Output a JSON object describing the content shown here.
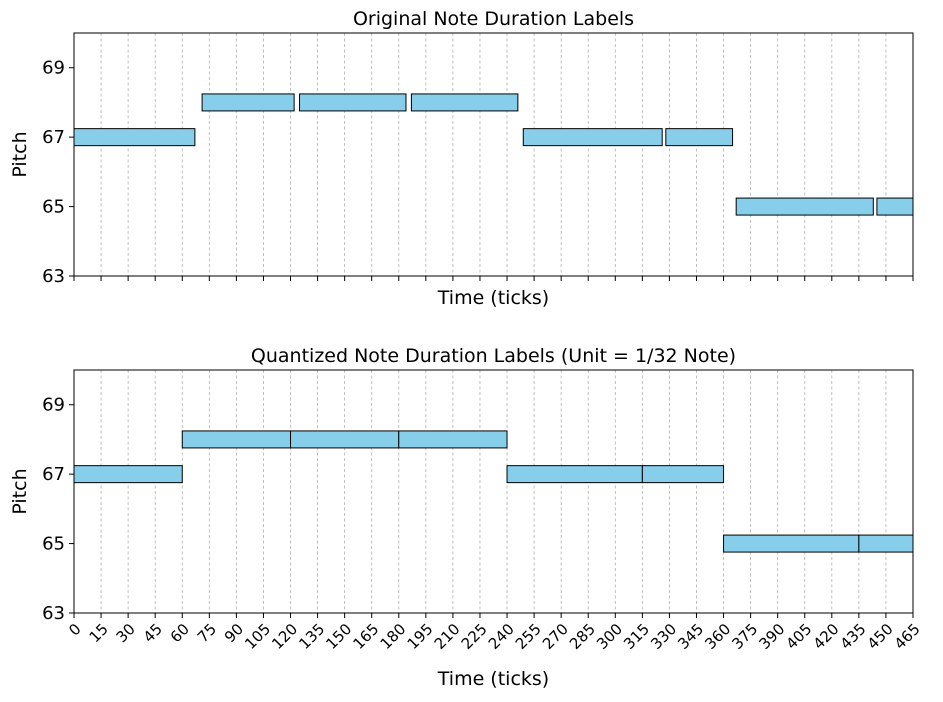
{
  "chart_data": [
    {
      "type": "bar",
      "subtype": "piano-roll",
      "title": "Original Note Duration Labels",
      "xlabel": "Time (ticks)",
      "ylabel": "Pitch",
      "xlim": [
        0,
        465
      ],
      "ylim": [
        63,
        70
      ],
      "yticks": [
        "63",
        "65",
        "67",
        "69"
      ],
      "xtick_labels_visible": false,
      "grid": "vertical dashed",
      "bar_color": "#87CEEB",
      "notes": [
        {
          "start": 0,
          "end": 67,
          "pitch": 67
        },
        {
          "start": 71,
          "end": 122,
          "pitch": 68
        },
        {
          "start": 125,
          "end": 184,
          "pitch": 68
        },
        {
          "start": 187,
          "end": 246,
          "pitch": 68
        },
        {
          "start": 249,
          "end": 326,
          "pitch": 67
        },
        {
          "start": 328,
          "end": 365,
          "pitch": 67
        },
        {
          "start": 367,
          "end": 443,
          "pitch": 65
        },
        {
          "start": 445,
          "end": 465,
          "pitch": 65
        }
      ]
    },
    {
      "type": "bar",
      "subtype": "piano-roll",
      "title": "Quantized Note Duration Labels (Unit = 1/32 Note)",
      "xlabel": "Time (ticks)",
      "ylabel": "Pitch",
      "xlim": [
        0,
        465
      ],
      "ylim": [
        63,
        70
      ],
      "yticks": [
        "63",
        "65",
        "67",
        "69"
      ],
      "xticks": [
        "0",
        "15",
        "30",
        "45",
        "60",
        "75",
        "90",
        "105",
        "120",
        "135",
        "150",
        "165",
        "180",
        "195",
        "210",
        "225",
        "240",
        "255",
        "270",
        "285",
        "300",
        "315",
        "330",
        "345",
        "360",
        "375",
        "390",
        "405",
        "420",
        "435",
        "450",
        "465"
      ],
      "grid": "vertical dashed",
      "bar_color": "#87CEEB",
      "notes": [
        {
          "start": 0,
          "end": 60,
          "pitch": 67
        },
        {
          "start": 60,
          "end": 120,
          "pitch": 68
        },
        {
          "start": 120,
          "end": 180,
          "pitch": 68
        },
        {
          "start": 180,
          "end": 240,
          "pitch": 68
        },
        {
          "start": 240,
          "end": 315,
          "pitch": 67
        },
        {
          "start": 315,
          "end": 360,
          "pitch": 67
        },
        {
          "start": 360,
          "end": 435,
          "pitch": 65
        },
        {
          "start": 435,
          "end": 465,
          "pitch": 65
        }
      ]
    }
  ]
}
